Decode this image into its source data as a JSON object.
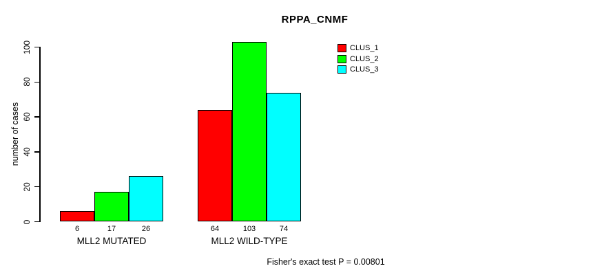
{
  "chart_data": {
    "type": "bar",
    "title": "RPPA_CNMF",
    "ylabel": "number of cases",
    "xlabel": "",
    "footnote": "Fisher's exact test P = 0.00801",
    "categories": [
      "MLL2 MUTATED",
      "MLL2 WILD-TYPE"
    ],
    "series": [
      {
        "name": "CLUS_1",
        "color": "#ff0000",
        "values": [
          6,
          64
        ]
      },
      {
        "name": "CLUS_2",
        "color": "#00ff00",
        "values": [
          17,
          103
        ]
      },
      {
        "name": "CLUS_3",
        "color": "#00ffff",
        "values": [
          26,
          74
        ]
      }
    ],
    "y_ticks": [
      0,
      20,
      40,
      60,
      80,
      100
    ],
    "ylim": [
      0,
      100
    ],
    "grid": false,
    "legend_position": "top-right",
    "bar_border_color": "#000000",
    "background_color": "#ffffff"
  }
}
